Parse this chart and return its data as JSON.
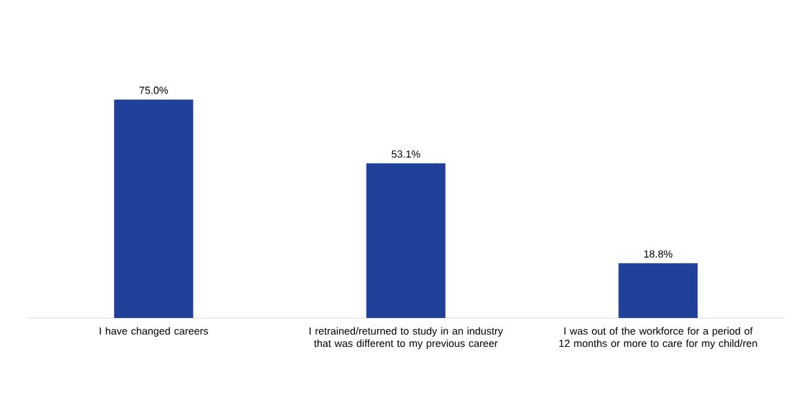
{
  "chart_data": {
    "type": "bar",
    "categories": [
      "I have changed careers",
      "I retrained/returned to study in an industry that was different to my previous career",
      "I was out of the workforce for a period of 12 months or more to care for my child/ren"
    ],
    "values": [
      75.0,
      53.1,
      18.8
    ],
    "value_labels": [
      "75.0%",
      "53.1%",
      "18.8%"
    ],
    "color": "#21409a"
  }
}
